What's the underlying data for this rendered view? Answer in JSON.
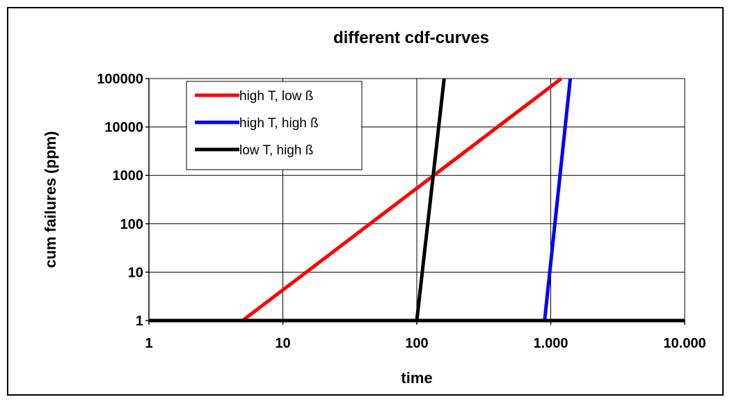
{
  "chart_data": {
    "type": "line",
    "title": "different cdf-curves",
    "xlabel": "time",
    "ylabel": "cum failures (ppm)",
    "x_scale": "log",
    "y_scale": "log",
    "xlim": [
      1,
      10000
    ],
    "ylim": [
      1,
      100000
    ],
    "x_ticks": [
      1,
      10,
      100,
      1000,
      10000
    ],
    "x_tick_labels": [
      "1",
      "10",
      "100",
      "1.000",
      "10.000"
    ],
    "y_ticks": [
      1,
      10,
      100,
      1000,
      10000,
      100000
    ],
    "y_tick_labels": [
      "1",
      "10",
      "100",
      "1000",
      "10000",
      "100000"
    ],
    "grid": true,
    "legend_position": "top-left",
    "series": [
      {
        "name": "high T, low ß",
        "color": "#ff0000",
        "x": [
          5,
          1200
        ],
        "y": [
          1,
          100000
        ]
      },
      {
        "name": "high T, high ß",
        "color": "#0000ff",
        "x": [
          900,
          1400
        ],
        "y": [
          1,
          100000
        ]
      },
      {
        "name": "low T, high ß",
        "color": "#000000",
        "x": [
          100,
          160
        ],
        "y": [
          1,
          100000
        ]
      }
    ]
  }
}
